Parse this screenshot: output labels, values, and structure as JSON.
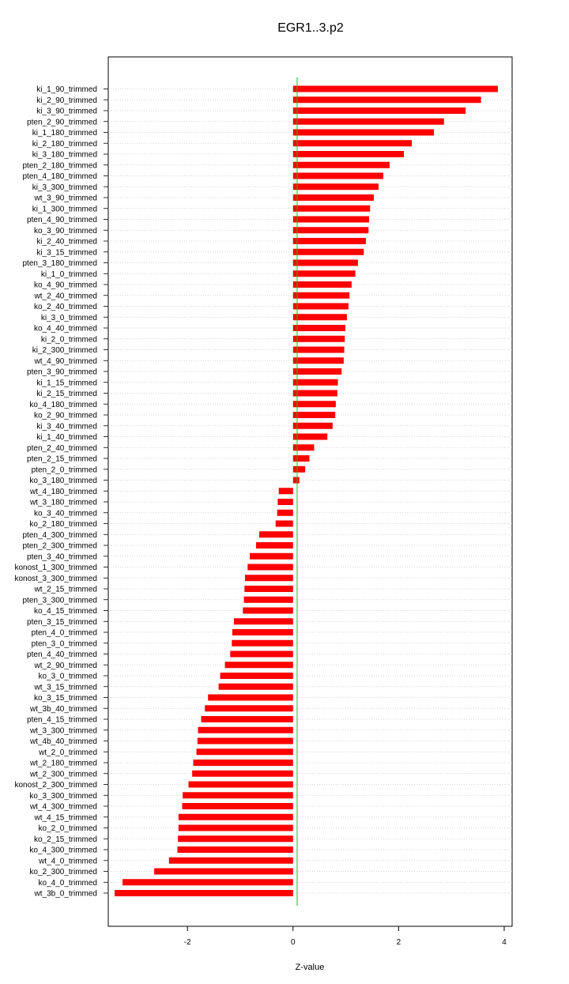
{
  "chart_data": {
    "type": "bar",
    "orientation": "horizontal",
    "title": "EGR1..3.p2",
    "xlabel": "Z-value",
    "ylabel": "",
    "xlim": [
      -3.5,
      4.15
    ],
    "xticks": [
      -2,
      0,
      2,
      4
    ],
    "xtick_labels": [
      "-2",
      "0",
      "2",
      "4"
    ],
    "grid": "horizontal dotted",
    "zero_line_color": "#00cc00",
    "bar_color": "#ff0000",
    "categories": [
      "ki_1_90_trimmed",
      "ki_2_90_trimmed",
      "ki_3_90_trimmed",
      "pten_2_90_trimmed",
      "ki_1_180_trimmed",
      "ki_2_180_trimmed",
      "ki_3_180_trimmed",
      "pten_2_180_trimmed",
      "pten_4_180_trimmed",
      "ki_3_300_trimmed",
      "wt_3_90_trimmed",
      "ki_1_300_trimmed",
      "pten_4_90_trimmed",
      "ko_3_90_trimmed",
      "ki_2_40_trimmed",
      "ki_3_15_trimmed",
      "pten_3_180_trimmed",
      "ki_1_0_trimmed",
      "ko_4_90_trimmed",
      "wt_2_40_trimmed",
      "ko_2_40_trimmed",
      "ki_3_0_trimmed",
      "ko_4_40_trimmed",
      "ki_2_0_trimmed",
      "ki_2_300_trimmed",
      "wt_4_90_trimmed",
      "pten_3_90_trimmed",
      "ki_1_15_trimmed",
      "ki_2_15_trimmed",
      "ko_4_180_trimmed",
      "ko_2_90_trimmed",
      "ki_3_40_trimmed",
      "ki_1_40_trimmed",
      "pten_2_40_trimmed",
      "pten_2_15_trimmed",
      "pten_2_0_trimmed",
      "ko_3_180_trimmed",
      "wt_4_180_trimmed",
      "wt_3_180_trimmed",
      "ko_3_40_trimmed",
      "ko_2_180_trimmed",
      "pten_4_300_trimmed",
      "pten_2_300_trimmed",
      "pten_3_40_trimmed",
      "konost_1_300_trimmed",
      "konost_3_300_trimmed",
      "wt_2_15_trimmed",
      "pten_3_300_trimmed",
      "ko_4_15_trimmed",
      "pten_3_15_trimmed",
      "pten_4_0_trimmed",
      "pten_3_0_trimmed",
      "pten_4_40_trimmed",
      "wt_2_90_trimmed",
      "ko_3_0_trimmed",
      "wt_3_15_trimmed",
      "ko_3_15_trimmed",
      "wt_3b_40_trimmed",
      "pten_4_15_trimmed",
      "wt_3_300_trimmed",
      "wt_4b_40_trimmed",
      "wt_2_0_trimmed",
      "wt_2_180_trimmed",
      "wt_2_300_trimmed",
      "konost_2_300_trimmed",
      "ko_3_300_trimmed",
      "wt_4_300_trimmed",
      "wt_4_15_trimmed",
      "ko_2_0_trimmed",
      "ko_2_15_trimmed",
      "ko_4_300_trimmed",
      "wt_4_0_trimmed",
      "ko_2_300_trimmed",
      "ko_4_0_trimmed",
      "wt_3b_0_trimmed"
    ],
    "values": [
      3.88,
      3.56,
      3.27,
      2.86,
      2.67,
      2.25,
      2.1,
      1.83,
      1.71,
      1.62,
      1.53,
      1.46,
      1.44,
      1.43,
      1.38,
      1.34,
      1.23,
      1.18,
      1.11,
      1.07,
      1.05,
      1.02,
      0.99,
      0.98,
      0.97,
      0.96,
      0.92,
      0.85,
      0.84,
      0.81,
      0.8,
      0.75,
      0.65,
      0.4,
      0.31,
      0.23,
      0.12,
      -0.27,
      -0.29,
      -0.3,
      -0.33,
      -0.64,
      -0.7,
      -0.82,
      -0.86,
      -0.91,
      -0.92,
      -0.93,
      -0.95,
      -1.12,
      -1.15,
      -1.16,
      -1.19,
      -1.29,
      -1.38,
      -1.41,
      -1.61,
      -1.67,
      -1.74,
      -1.8,
      -1.81,
      -1.83,
      -1.89,
      -1.91,
      -1.98,
      -2.09,
      -2.1,
      -2.17,
      -2.17,
      -2.18,
      -2.19,
      -2.35,
      -2.63,
      -3.23,
      -3.38
    ]
  }
}
